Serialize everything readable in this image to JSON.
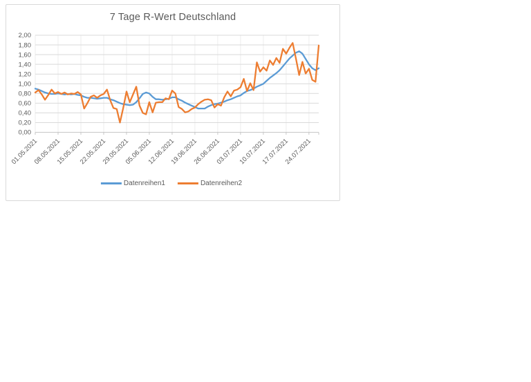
{
  "chart": {
    "title": "7 Tage R-Wert Deutschland",
    "colors": {
      "background": "#ffffff",
      "border": "#d9d9d9",
      "gridline": "#d9d9d9",
      "vertical_gridline": "#ededed",
      "axis_line": "#c6c6c6",
      "text": "#595959"
    }
  },
  "legend": {
    "items": [
      {
        "label": "Datenreihen1",
        "color": "#5b9bd5"
      },
      {
        "label": "Datenreihen2",
        "color": "#ed7d31"
      }
    ]
  },
  "chart_data": {
    "type": "line",
    "title": "7 Tage R-Wert Deutschland",
    "xlabel": "",
    "ylabel": "",
    "ylim": [
      0,
      2
    ],
    "y_tick_step": 0.2,
    "y_tick_labels": [
      "0,00",
      "0,20",
      "0,40",
      "0,60",
      "0,80",
      "1,00",
      "1,20",
      "1,40",
      "1,60",
      "1,80",
      "2,00"
    ],
    "x_tick_labels": [
      "01.05.2021",
      "08.05.2021",
      "15.05.2021",
      "22.05.2021",
      "29.05.2021",
      "05.06.2021",
      "12.06.2021",
      "19.06.2021",
      "26.06.2021",
      "03.07.2021",
      "10.07.2021",
      "17.07.2021",
      "24.07.2021"
    ],
    "tick_every_days": 7,
    "points_start_date": "01.05.2021",
    "points_per_day": 1,
    "grid": "horizontal",
    "legend_position": "bottom",
    "series": [
      {
        "name": "Datenreihen1",
        "color": "#5b9bd5",
        "values": [
          0.9,
          0.88,
          0.85,
          0.82,
          0.8,
          0.79,
          0.79,
          0.8,
          0.79,
          0.78,
          0.79,
          0.78,
          0.79,
          0.77,
          0.76,
          0.73,
          0.71,
          0.71,
          0.7,
          0.69,
          0.7,
          0.71,
          0.71,
          0.68,
          0.66,
          0.63,
          0.6,
          0.58,
          0.57,
          0.56,
          0.57,
          0.62,
          0.7,
          0.79,
          0.82,
          0.8,
          0.73,
          0.68,
          0.68,
          0.67,
          0.68,
          0.69,
          0.72,
          0.72,
          0.68,
          0.65,
          0.61,
          0.58,
          0.55,
          0.52,
          0.49,
          0.49,
          0.49,
          0.53,
          0.56,
          0.58,
          0.59,
          0.61,
          0.63,
          0.66,
          0.68,
          0.71,
          0.74,
          0.76,
          0.81,
          0.85,
          0.87,
          0.9,
          0.94,
          0.97,
          1.0,
          1.06,
          1.12,
          1.17,
          1.22,
          1.28,
          1.36,
          1.44,
          1.52,
          1.58,
          1.64,
          1.67,
          1.62,
          1.51,
          1.4,
          1.32,
          1.28,
          1.32
        ]
      },
      {
        "name": "Datenreihen2",
        "color": "#ed7d31",
        "values": [
          0.82,
          0.87,
          0.78,
          0.67,
          0.77,
          0.88,
          0.8,
          0.83,
          0.79,
          0.82,
          0.78,
          0.8,
          0.79,
          0.83,
          0.78,
          0.49,
          0.6,
          0.73,
          0.76,
          0.71,
          0.76,
          0.79,
          0.88,
          0.66,
          0.5,
          0.48,
          0.2,
          0.5,
          0.84,
          0.62,
          0.78,
          0.94,
          0.55,
          0.4,
          0.37,
          0.62,
          0.41,
          0.61,
          0.62,
          0.62,
          0.7,
          0.68,
          0.86,
          0.8,
          0.52,
          0.48,
          0.41,
          0.43,
          0.48,
          0.51,
          0.58,
          0.63,
          0.67,
          0.68,
          0.66,
          0.51,
          0.58,
          0.55,
          0.72,
          0.84,
          0.74,
          0.86,
          0.88,
          0.93,
          1.1,
          0.85,
          1.01,
          0.87,
          1.44,
          1.25,
          1.34,
          1.27,
          1.48,
          1.39,
          1.53,
          1.43,
          1.72,
          1.62,
          1.74,
          1.84,
          1.52,
          1.18,
          1.45,
          1.21,
          1.31,
          1.08,
          1.04,
          1.79
        ]
      }
    ]
  }
}
